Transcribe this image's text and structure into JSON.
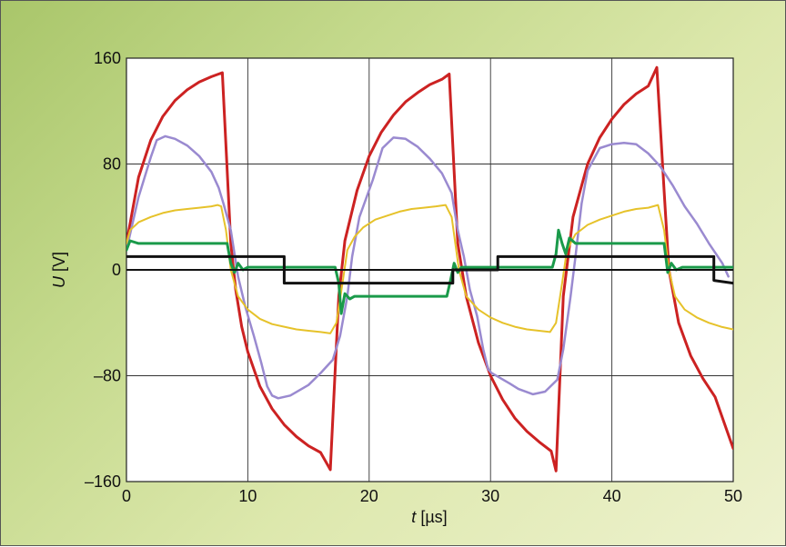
{
  "chart_data": {
    "type": "line",
    "title": "",
    "xlabel": {
      "symbol": "t",
      "unit": " [µs]"
    },
    "ylabel": {
      "symbol": "U",
      "unit": " [V]"
    },
    "xlim": [
      0,
      50
    ],
    "ylim": [
      -160,
      160
    ],
    "xticks": [
      0,
      10,
      20,
      30,
      40,
      50
    ],
    "yticks": [
      -160,
      -80,
      0,
      80,
      160
    ],
    "xtick_labels": [
      "0",
      "10",
      "20",
      "30",
      "40",
      "50"
    ],
    "ytick_labels": [
      "–160",
      "–80",
      "0",
      "80",
      "160"
    ],
    "grid": true,
    "legend": "none",
    "series": [
      {
        "color": "#cc2222",
        "width": 3,
        "points": [
          [
            0,
            20
          ],
          [
            1,
            70
          ],
          [
            2,
            98
          ],
          [
            3,
            116
          ],
          [
            4,
            128
          ],
          [
            5,
            136
          ],
          [
            6,
            142
          ],
          [
            7,
            146
          ],
          [
            7.9,
            149
          ],
          [
            8.6,
            20
          ],
          [
            9,
            -15
          ],
          [
            9.5,
            -43
          ],
          [
            10,
            -62
          ],
          [
            11,
            -88
          ],
          [
            12,
            -105
          ],
          [
            13,
            -117
          ],
          [
            14,
            -126
          ],
          [
            15,
            -133
          ],
          [
            16,
            -138
          ],
          [
            16.8,
            -151
          ],
          [
            17.5,
            -20
          ],
          [
            18,
            22
          ],
          [
            19,
            60
          ],
          [
            20,
            86
          ],
          [
            21,
            104
          ],
          [
            22,
            117
          ],
          [
            23,
            127
          ],
          [
            24,
            134
          ],
          [
            25,
            140
          ],
          [
            26,
            144
          ],
          [
            26.6,
            148
          ],
          [
            27.3,
            20
          ],
          [
            28,
            -20
          ],
          [
            29,
            -55
          ],
          [
            30,
            -80
          ],
          [
            31,
            -98
          ],
          [
            32,
            -112
          ],
          [
            33,
            -122
          ],
          [
            34,
            -130
          ],
          [
            35,
            -137
          ],
          [
            35.4,
            -152
          ],
          [
            36,
            -20
          ],
          [
            36.8,
            40
          ],
          [
            38,
            80
          ],
          [
            39,
            100
          ],
          [
            40,
            114
          ],
          [
            41,
            125
          ],
          [
            42,
            133
          ],
          [
            43,
            139
          ],
          [
            43.7,
            153
          ],
          [
            44.3,
            60
          ],
          [
            44.7,
            0
          ],
          [
            45.5,
            -40
          ],
          [
            46.5,
            -65
          ],
          [
            47.5,
            -82
          ],
          [
            48.5,
            -96
          ],
          [
            50,
            -135
          ]
        ]
      },
      {
        "color": "#9a8ad0",
        "width": 2.5,
        "points": [
          [
            0,
            15
          ],
          [
            1,
            55
          ],
          [
            2,
            85
          ],
          [
            2.5,
            98
          ],
          [
            3.2,
            101
          ],
          [
            4,
            99
          ],
          [
            5,
            94
          ],
          [
            6,
            86
          ],
          [
            7,
            74
          ],
          [
            7.6,
            62
          ],
          [
            8,
            50
          ],
          [
            8.6,
            30
          ],
          [
            9.2,
            -5
          ],
          [
            9.8,
            -28
          ],
          [
            10.5,
            -50
          ],
          [
            11.1,
            -70
          ],
          [
            11.6,
            -88
          ],
          [
            12,
            -95
          ],
          [
            12.5,
            -97
          ],
          [
            13.5,
            -95
          ],
          [
            15,
            -87
          ],
          [
            16,
            -78
          ],
          [
            17,
            -68
          ],
          [
            17.6,
            -50
          ],
          [
            18.2,
            -20
          ],
          [
            18.6,
            10
          ],
          [
            19.2,
            40
          ],
          [
            20.3,
            68
          ],
          [
            21.1,
            92
          ],
          [
            22,
            100
          ],
          [
            23,
            99
          ],
          [
            24,
            93
          ],
          [
            25,
            84
          ],
          [
            26,
            73
          ],
          [
            26.8,
            58
          ],
          [
            27.3,
            30
          ],
          [
            27.8,
            10
          ],
          [
            28.3,
            -15
          ],
          [
            28.9,
            -35
          ],
          [
            29.4,
            -60
          ],
          [
            29.8,
            -75
          ],
          [
            30.1,
            -78
          ],
          [
            31.6,
            -86
          ],
          [
            32.3,
            -90
          ],
          [
            33.5,
            -94
          ],
          [
            34.5,
            -92
          ],
          [
            35.5,
            -83
          ],
          [
            36,
            -60
          ],
          [
            36.6,
            -20
          ],
          [
            37,
            10
          ],
          [
            37.5,
            50
          ],
          [
            38,
            75
          ],
          [
            39,
            92
          ],
          [
            40,
            95
          ],
          [
            41,
            96
          ],
          [
            42,
            95
          ],
          [
            43,
            88
          ],
          [
            44,
            78
          ],
          [
            45,
            64
          ],
          [
            46,
            48
          ],
          [
            47,
            35
          ],
          [
            48,
            20
          ],
          [
            49.1,
            5
          ],
          [
            49.6,
            -5
          ]
        ]
      },
      {
        "color": "#e6c22a",
        "width": 2,
        "points": [
          [
            0,
            20
          ],
          [
            0.3,
            30
          ],
          [
            1,
            36
          ],
          [
            2,
            40
          ],
          [
            3,
            43
          ],
          [
            4,
            45
          ],
          [
            5,
            46
          ],
          [
            6,
            47
          ],
          [
            7,
            48
          ],
          [
            7.5,
            49
          ],
          [
            7.8,
            48
          ],
          [
            8.2,
            30
          ],
          [
            8.6,
            0
          ],
          [
            9.2,
            -20
          ],
          [
            10,
            -30
          ],
          [
            11,
            -37
          ],
          [
            12,
            -41
          ],
          [
            13,
            -43
          ],
          [
            14,
            -45
          ],
          [
            15,
            -46
          ],
          [
            16,
            -47
          ],
          [
            16.8,
            -48
          ],
          [
            17.3,
            -40
          ],
          [
            17.8,
            -10
          ],
          [
            18.2,
            15
          ],
          [
            18.8,
            25
          ],
          [
            19.5,
            32
          ],
          [
            20.5,
            38
          ],
          [
            21.5,
            41
          ],
          [
            22.5,
            44
          ],
          [
            23.5,
            46
          ],
          [
            24.5,
            47
          ],
          [
            25.5,
            48
          ],
          [
            26.3,
            49
          ],
          [
            26.8,
            40
          ],
          [
            27.4,
            0
          ],
          [
            28,
            -20
          ],
          [
            29,
            -30
          ],
          [
            30,
            -36
          ],
          [
            31,
            -40
          ],
          [
            32,
            -43
          ],
          [
            33,
            -45
          ],
          [
            34,
            -46
          ],
          [
            34.9,
            -47
          ],
          [
            35.4,
            -40
          ],
          [
            35.9,
            -10
          ],
          [
            36.3,
            15
          ],
          [
            37,
            27
          ],
          [
            38,
            34
          ],
          [
            39,
            38
          ],
          [
            40,
            41
          ],
          [
            41,
            44
          ],
          [
            42,
            46
          ],
          [
            43,
            47
          ],
          [
            43.8,
            49
          ],
          [
            44.3,
            30
          ],
          [
            44.7,
            0
          ],
          [
            45.2,
            -20
          ],
          [
            46,
            -30
          ],
          [
            47,
            -36
          ],
          [
            48,
            -40
          ],
          [
            49,
            -43
          ],
          [
            50,
            -45
          ]
        ]
      },
      {
        "color": "#1a9a4a",
        "width": 3,
        "points": [
          [
            0,
            15
          ],
          [
            0.3,
            22
          ],
          [
            1,
            20
          ],
          [
            8.3,
            20
          ],
          [
            8.6,
            5
          ],
          [
            8.9,
            -2
          ],
          [
            9.2,
            5
          ],
          [
            9.6,
            0
          ],
          [
            10,
            2
          ],
          [
            17.2,
            2
          ],
          [
            17.5,
            -10
          ],
          [
            17.7,
            -33
          ],
          [
            18,
            -18
          ],
          [
            18.4,
            -22
          ],
          [
            18.8,
            -20
          ],
          [
            26.4,
            -20
          ],
          [
            26.7,
            -8
          ],
          [
            27,
            5
          ],
          [
            27.3,
            -2
          ],
          [
            27.6,
            2
          ],
          [
            35.1,
            2
          ],
          [
            35.4,
            12
          ],
          [
            35.6,
            30
          ],
          [
            35.9,
            20
          ],
          [
            36.2,
            12
          ],
          [
            36.5,
            24
          ],
          [
            37,
            20
          ],
          [
            44.3,
            20
          ],
          [
            44.6,
            -2
          ],
          [
            44.9,
            5
          ],
          [
            45.3,
            0
          ],
          [
            45.8,
            2
          ],
          [
            50,
            2
          ]
        ]
      },
      {
        "color": "#111111",
        "width": 2,
        "points": [
          [
            0,
            0
          ],
          [
            50,
            0
          ]
        ]
      },
      {
        "color": "#111111",
        "width": 3,
        "points": [
          [
            0,
            10
          ],
          [
            13,
            10
          ],
          [
            13,
            -10
          ],
          [
            17.5,
            -10
          ],
          [
            17.5,
            -10
          ],
          [
            26.9,
            -10
          ],
          [
            26.9,
            0
          ],
          [
            30.6,
            0
          ],
          [
            30.6,
            10
          ],
          [
            48.4,
            10
          ],
          [
            48.4,
            -8
          ],
          [
            50,
            -10
          ]
        ]
      }
    ]
  }
}
